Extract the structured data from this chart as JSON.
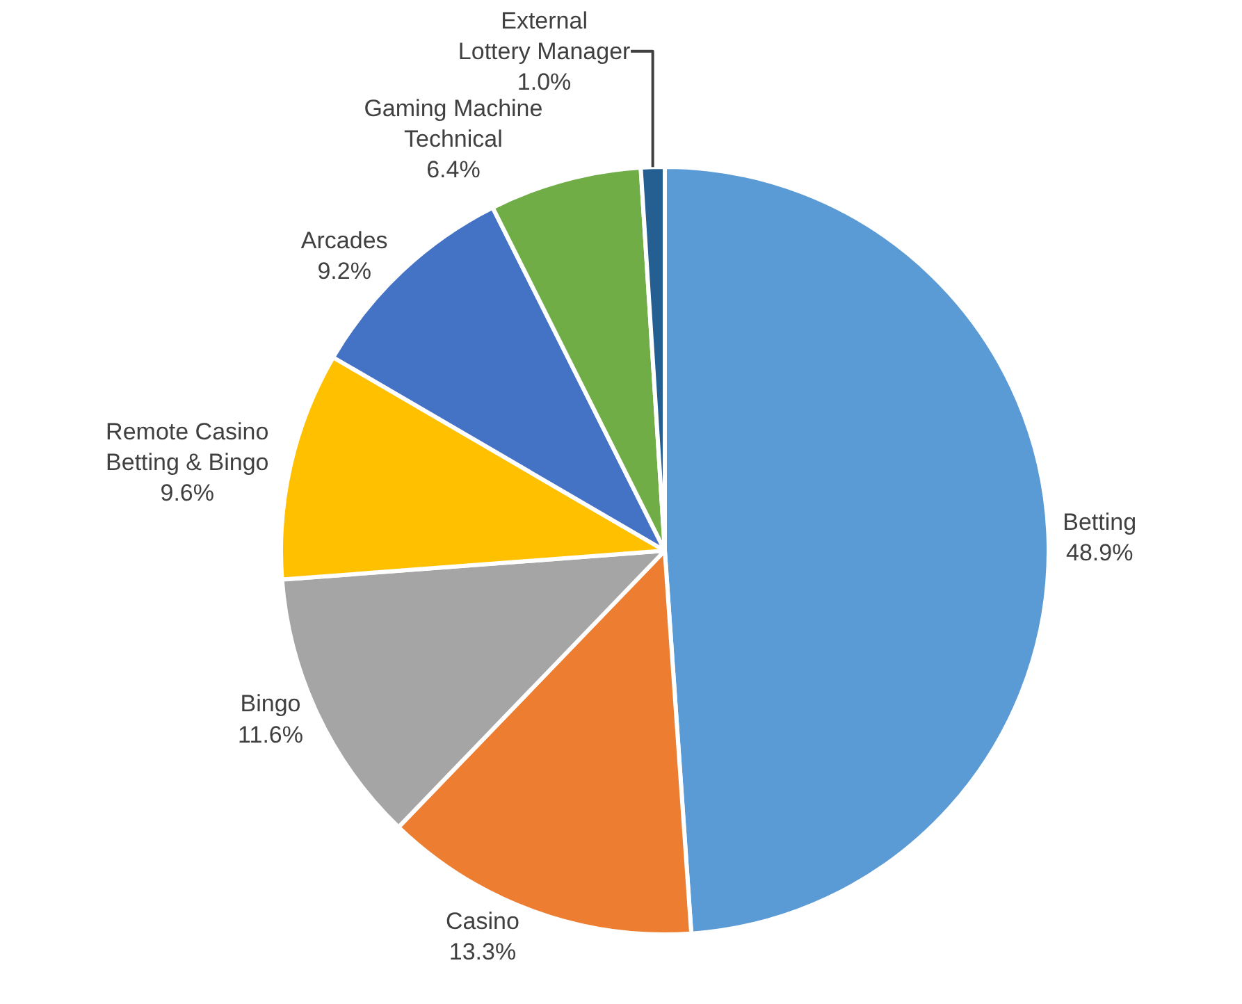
{
  "chart_data": {
    "type": "pie",
    "categories": [
      "Betting",
      "Casino",
      "Bingo",
      "Remote Casino Betting & Bingo",
      "Arcades",
      "Gaming Machine Technical",
      "External Lottery Manager"
    ],
    "values": [
      48.9,
      13.3,
      11.6,
      9.6,
      9.2,
      6.4,
      1.0
    ],
    "value_labels": [
      "48.9%",
      "13.3%",
      "11.6%",
      "9.6%",
      "9.2%",
      "6.4%",
      "1.0%"
    ],
    "colors": [
      "#5b9bd5",
      "#ed7d31",
      "#a5a5a5",
      "#ffc000",
      "#4472c4",
      "#70ad47",
      "#255e91"
    ],
    "legend": false
  }
}
